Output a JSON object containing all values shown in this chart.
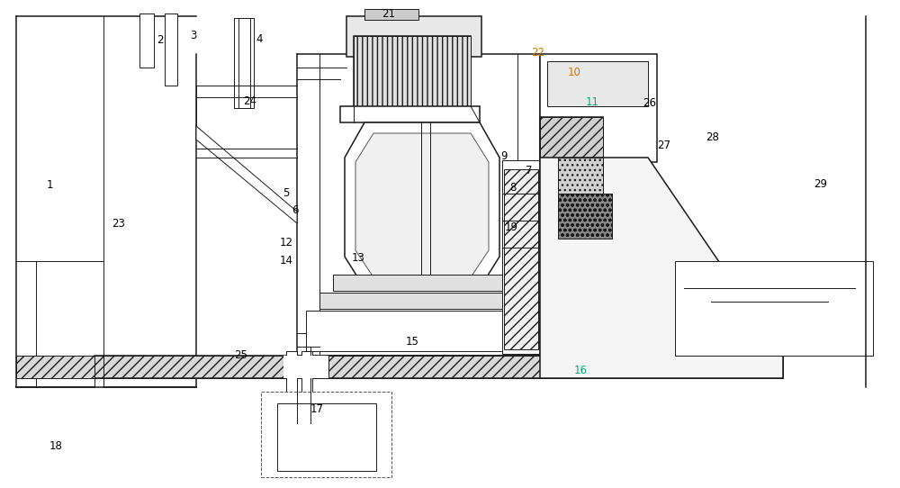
{
  "bg_color": "#ffffff",
  "lc": "#1a1a1a",
  "figsize": [
    10.0,
    5.42
  ],
  "dpi": 100,
  "labels": {
    "1": [
      0.055,
      0.38,
      "#000000"
    ],
    "2": [
      0.178,
      0.082,
      "#000000"
    ],
    "3": [
      0.215,
      0.072,
      "#000000"
    ],
    "4": [
      0.288,
      0.08,
      "#000000"
    ],
    "5": [
      0.318,
      0.395,
      "#000000"
    ],
    "6": [
      0.328,
      0.43,
      "#000000"
    ],
    "7": [
      0.588,
      0.35,
      "#000000"
    ],
    "8": [
      0.57,
      0.385,
      "#000000"
    ],
    "9": [
      0.56,
      0.32,
      "#000000"
    ],
    "10": [
      0.638,
      0.148,
      "#cc7700"
    ],
    "11": [
      0.658,
      0.21,
      "#00aa77"
    ],
    "12": [
      0.318,
      0.498,
      "#000000"
    ],
    "13": [
      0.398,
      0.528,
      "#000000"
    ],
    "14": [
      0.318,
      0.535,
      "#000000"
    ],
    "15": [
      0.458,
      0.7,
      "#000000"
    ],
    "16": [
      0.645,
      0.76,
      "#00aa77"
    ],
    "17": [
      0.352,
      0.838,
      "#000000"
    ],
    "18": [
      0.062,
      0.915,
      "#000000"
    ],
    "19": [
      0.568,
      0.465,
      "#000000"
    ],
    "21": [
      0.432,
      0.028,
      "#000000"
    ],
    "22": [
      0.598,
      0.108,
      "#cc7700"
    ],
    "23": [
      0.132,
      0.458,
      "#000000"
    ],
    "24": [
      0.278,
      0.208,
      "#000000"
    ],
    "25": [
      0.268,
      0.728,
      "#000000"
    ],
    "26": [
      0.722,
      0.212,
      "#000000"
    ],
    "27": [
      0.738,
      0.298,
      "#000000"
    ],
    "28": [
      0.792,
      0.282,
      "#000000"
    ],
    "29": [
      0.912,
      0.378,
      "#000000"
    ]
  }
}
